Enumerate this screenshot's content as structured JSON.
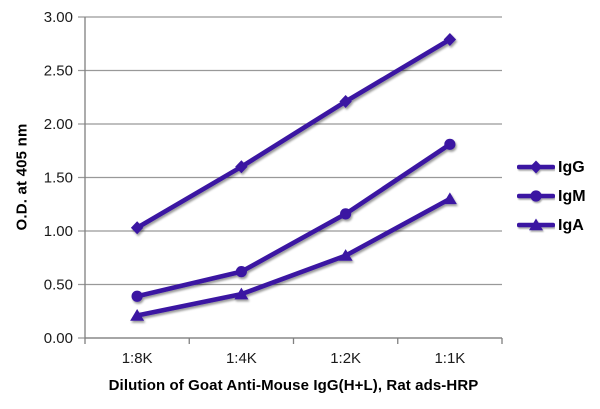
{
  "chart_data": {
    "type": "line",
    "title": "",
    "xlabel": "Dilution of Goat Anti-Mouse IgG(H+L), Rat ads-HRP",
    "ylabel": "O.D. at 405 nm",
    "categories": [
      "1:8K",
      "1:4K",
      "1:2K",
      "1:1K"
    ],
    "series": [
      {
        "name": "IgG",
        "marker": "diamond",
        "values": [
          1.03,
          1.6,
          2.21,
          2.79
        ]
      },
      {
        "name": "IgM",
        "marker": "circle",
        "values": [
          0.39,
          0.62,
          1.16,
          1.81
        ]
      },
      {
        "name": "IgA",
        "marker": "triangle",
        "values": [
          0.21,
          0.41,
          0.77,
          1.3
        ]
      }
    ],
    "ylim": [
      0,
      3
    ],
    "ytick_step": 0.5,
    "ytick_labels": [
      "0.00",
      "0.50",
      "1.00",
      "1.50",
      "2.00",
      "2.50",
      "3.00"
    ],
    "grid": true,
    "legend_position": "right",
    "colors": {
      "line": "#3A18A2",
      "gridline": "#999999",
      "axis": "#808080",
      "tick_text": "#1A1A1A",
      "title_text": "#000000",
      "background": "#FFFFFF"
    }
  }
}
